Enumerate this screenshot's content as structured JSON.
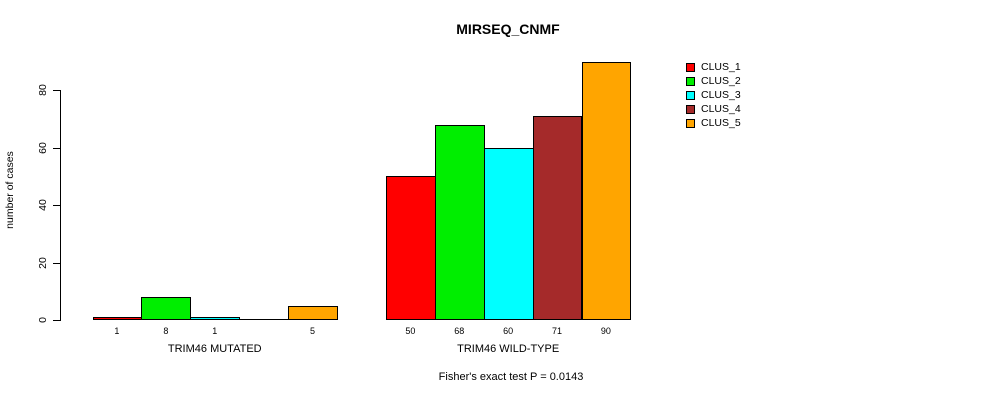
{
  "title": "MIRSEQ_CNMF",
  "footer": "Fisher's exact test P = 0.0143",
  "chart_data": {
    "type": "bar",
    "title": "MIRSEQ_CNMF",
    "xlabel": "",
    "ylabel": "number of cases",
    "ylim": [
      0,
      90
    ],
    "yticks": [
      0,
      20,
      40,
      60,
      80
    ],
    "grid": false,
    "legend_position": "right",
    "categories": [
      "TRIM46 MUTATED",
      "TRIM46 WILD-TYPE"
    ],
    "series": [
      {
        "name": "CLUS_1",
        "color": "#FF0000",
        "values": [
          1,
          50
        ]
      },
      {
        "name": "CLUS_2",
        "color": "#00EE00",
        "values": [
          8,
          68
        ]
      },
      {
        "name": "CLUS_3",
        "color": "#00FFFF",
        "values": [
          1,
          60
        ]
      },
      {
        "name": "CLUS_4",
        "color": "#A52A2A",
        "values": [
          0,
          71
        ]
      },
      {
        "name": "CLUS_5",
        "color": "#FFA500",
        "values": [
          5,
          90
        ]
      }
    ],
    "bar_value_labels": [
      [
        "1",
        "8",
        "1",
        "",
        "5"
      ],
      [
        "50",
        "68",
        "60",
        "71",
        "90"
      ]
    ],
    "annotation": "Fisher's exact test P = 0.0143"
  }
}
